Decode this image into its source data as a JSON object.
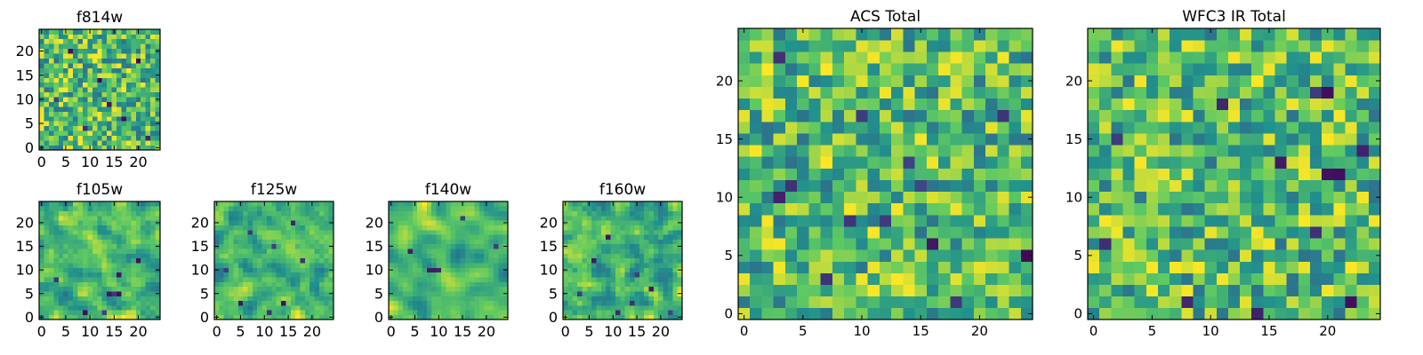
{
  "colormap": "viridis",
  "colormap_stops": [
    "#440154",
    "#3b528b",
    "#21918c",
    "#5ec962",
    "#fde725"
  ],
  "chart_data": [
    {
      "type": "heatmap",
      "title": "f814w",
      "xticks": [
        0,
        5,
        10,
        15,
        20
      ],
      "yticks": [
        0,
        5,
        10,
        15,
        20
      ],
      "grid_size": 25,
      "xlim": [
        -0.5,
        24.5
      ],
      "ylim": [
        -0.5,
        24.5
      ],
      "value_range": [
        0,
        1
      ],
      "seed": 814,
      "smooth": 0,
      "low_cells": [
        [
          3,
          10
        ],
        [
          9,
          4
        ],
        [
          12,
          14
        ],
        [
          17,
          6
        ],
        [
          20,
          18
        ],
        [
          6,
          20
        ],
        [
          14,
          9
        ],
        [
          22,
          2
        ]
      ]
    },
    {
      "type": "heatmap",
      "title": "f105w",
      "xticks": [
        0,
        5,
        10,
        15,
        20
      ],
      "yticks": [
        0,
        5,
        10,
        15,
        20
      ],
      "grid_size": 25,
      "xlim": [
        -0.5,
        24.5
      ],
      "ylim": [
        -0.5,
        24.5
      ],
      "value_range": [
        0,
        1
      ],
      "seed": 105,
      "smooth": 1,
      "low_cells": [
        [
          14,
          5
        ],
        [
          15,
          5
        ],
        [
          16,
          5
        ],
        [
          9,
          1
        ],
        [
          3,
          8
        ],
        [
          20,
          12
        ],
        [
          16,
          9
        ],
        [
          13,
          1
        ]
      ]
    },
    {
      "type": "heatmap",
      "title": "f125w",
      "xticks": [
        0,
        5,
        10,
        15,
        20
      ],
      "yticks": [
        0,
        5,
        10,
        15,
        20
      ],
      "grid_size": 25,
      "xlim": [
        -0.5,
        24.5
      ],
      "ylim": [
        -0.5,
        24.5
      ],
      "value_range": [
        0,
        1
      ],
      "seed": 125,
      "smooth": 1,
      "low_cells": [
        [
          14,
          3
        ],
        [
          11,
          1
        ],
        [
          5,
          3
        ],
        [
          12,
          15
        ],
        [
          7,
          18
        ],
        [
          2,
          10
        ],
        [
          18,
          12
        ],
        [
          16,
          20
        ]
      ]
    },
    {
      "type": "heatmap",
      "title": "f140w",
      "xticks": [
        0,
        5,
        10,
        15,
        20
      ],
      "yticks": [
        0,
        5,
        10,
        15,
        20
      ],
      "grid_size": 25,
      "xlim": [
        -0.5,
        24.5
      ],
      "ylim": [
        -0.5,
        24.5
      ],
      "value_range": [
        0,
        1
      ],
      "seed": 140,
      "smooth": 2,
      "low_cells": [
        [
          8,
          10
        ],
        [
          9,
          10
        ],
        [
          10,
          10
        ],
        [
          15,
          21
        ],
        [
          22,
          15
        ],
        [
          4,
          14
        ]
      ]
    },
    {
      "type": "heatmap",
      "title": "f160w",
      "xticks": [
        0,
        5,
        10,
        15,
        20
      ],
      "yticks": [
        0,
        5,
        10,
        15,
        20
      ],
      "grid_size": 25,
      "xlim": [
        -0.5,
        24.5
      ],
      "ylim": [
        -0.5,
        24.5
      ],
      "value_range": [
        0,
        1
      ],
      "seed": 160,
      "smooth": 1,
      "low_cells": [
        [
          6,
          12
        ],
        [
          11,
          1
        ],
        [
          14,
          3
        ],
        [
          22,
          1
        ],
        [
          18,
          6
        ],
        [
          9,
          17
        ],
        [
          3,
          5
        ],
        [
          15,
          9
        ]
      ]
    },
    {
      "type": "heatmap",
      "title": "ACS Total",
      "xticks": [
        0,
        5,
        10,
        15,
        20
      ],
      "yticks": [
        0,
        5,
        10,
        15,
        20
      ],
      "grid_size": 25,
      "xlim": [
        -0.5,
        24.5
      ],
      "ylim": [
        -0.5,
        24.5
      ],
      "value_range": [
        0,
        1
      ],
      "seed": 900,
      "smooth": 0,
      "low_cells": [
        [
          3,
          22
        ],
        [
          4,
          11
        ],
        [
          3,
          10
        ],
        [
          14,
          13
        ],
        [
          15,
          11
        ],
        [
          7,
          3
        ],
        [
          24,
          5
        ],
        [
          18,
          1
        ],
        [
          9,
          8
        ],
        [
          12,
          8
        ],
        [
          22,
          17
        ],
        [
          16,
          6
        ],
        [
          10,
          17
        ]
      ]
    },
    {
      "type": "heatmap",
      "title": "WFC3 IR Total",
      "xticks": [
        0,
        5,
        10,
        15,
        20
      ],
      "yticks": [
        0,
        5,
        10,
        15,
        20
      ],
      "grid_size": 25,
      "xlim": [
        -0.5,
        24.5
      ],
      "ylim": [
        -0.5,
        24.5
      ],
      "value_range": [
        0,
        1
      ],
      "seed": 901,
      "smooth": 0,
      "low_cells": [
        [
          11,
          18
        ],
        [
          2,
          15
        ],
        [
          16,
          13
        ],
        [
          20,
          12
        ],
        [
          21,
          12
        ],
        [
          19,
          19
        ],
        [
          20,
          19
        ],
        [
          14,
          0
        ],
        [
          22,
          1
        ],
        [
          8,
          1
        ],
        [
          23,
          14
        ],
        [
          19,
          7
        ],
        [
          1,
          6
        ]
      ]
    }
  ]
}
